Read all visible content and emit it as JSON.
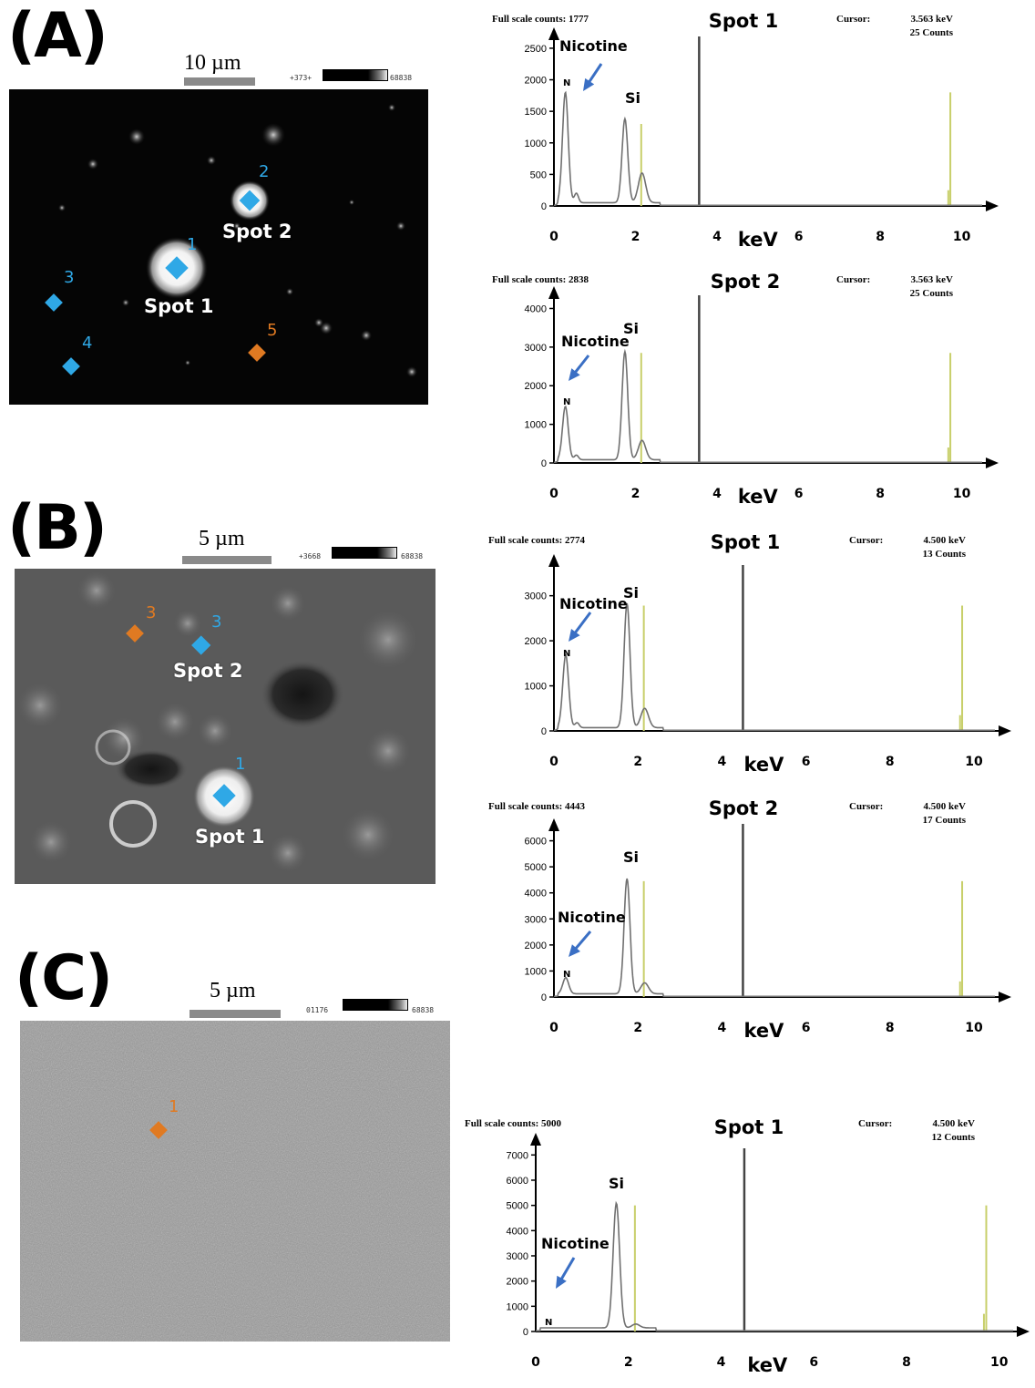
{
  "panels": {
    "a": {
      "label": "(A)",
      "scale": "10 µm",
      "range_left": "+373+",
      "range_right": "68838",
      "spot_labels": {
        "s1": "Spot 1",
        "s2": "Spot 2"
      },
      "numbers": {
        "n1": "1",
        "n2": "2",
        "n3": "3",
        "n4": "4",
        "n5": "5"
      }
    },
    "b": {
      "label": "(B)",
      "scale": "5 µm",
      "range_left": "+3668",
      "range_right": "68838",
      "spot_labels": {
        "s1": "Spot 1",
        "s2": "Spot 2"
      },
      "numbers": {
        "n1": "1",
        "n2": "3",
        "n3": "3"
      }
    },
    "c": {
      "label": "(C)",
      "scale": "5 µm",
      "range_left": "01176",
      "range_right": "68838",
      "numbers": {
        "n1": "1"
      }
    }
  },
  "colors": {
    "marker_blue": "#2fa8e6",
    "marker_orange": "#e07a22",
    "arrow_blue": "#3a6fc4",
    "peak_line": "#c8cf6a",
    "spectrum_line": "#707070"
  },
  "chart_data": [
    {
      "type": "line",
      "panel": "A",
      "title": "Spot 1",
      "full_scale": "Full scale counts: 1777",
      "cursor_label": "Cursor:",
      "cursor_value": "3.563 keV",
      "cursor_counts": "25 Counts",
      "xlabel": "keV",
      "xlim": [
        0,
        10.5
      ],
      "ylim": [
        0,
        2600
      ],
      "xticks": [
        0,
        2,
        4,
        6,
        8,
        10
      ],
      "yticks": [
        0,
        500,
        1000,
        1500,
        2000,
        2500
      ],
      "cursor_x": 3.56,
      "peaks": [
        {
          "x": 0.28,
          "y": 1750,
          "w": 0.07
        },
        {
          "x": 0.55,
          "y": 150,
          "w": 0.05
        },
        {
          "x": 1.74,
          "y": 1330,
          "w": 0.07
        },
        {
          "x": 2.16,
          "y": 470,
          "w": 0.09
        }
      ],
      "markers": [
        {
          "x": 2.14,
          "y": 1300
        },
        {
          "x": 9.72,
          "y": 1800
        },
        {
          "x": 9.67,
          "y": 250
        }
      ],
      "annotations": {
        "nicotine": "Nicotine",
        "n": "N",
        "si": "Si"
      }
    },
    {
      "type": "line",
      "panel": "A",
      "title": "Spot 2",
      "full_scale": "Full scale counts: 2838",
      "cursor_label": "Cursor:",
      "cursor_value": "3.563 keV",
      "cursor_counts": "25 Counts",
      "xlabel": "keV",
      "xlim": [
        0,
        10.5
      ],
      "ylim": [
        0,
        4200
      ],
      "xticks": [
        0,
        2,
        4,
        6,
        8,
        10
      ],
      "yticks": [
        0,
        1000,
        2000,
        3000,
        4000
      ],
      "cursor_x": 3.56,
      "peaks": [
        {
          "x": 0.28,
          "y": 1380,
          "w": 0.07
        },
        {
          "x": 0.55,
          "y": 120,
          "w": 0.05
        },
        {
          "x": 1.74,
          "y": 2800,
          "w": 0.07
        },
        {
          "x": 2.16,
          "y": 500,
          "w": 0.09
        }
      ],
      "markers": [
        {
          "x": 2.14,
          "y": 2850
        },
        {
          "x": 9.72,
          "y": 2850
        },
        {
          "x": 9.67,
          "y": 400
        }
      ],
      "annotations": {
        "nicotine": "Nicotine",
        "n": "N",
        "si": "Si"
      }
    },
    {
      "type": "line",
      "panel": "B",
      "title": "Spot 1",
      "full_scale": "Full scale counts: 2774",
      "cursor_label": "Cursor:",
      "cursor_value": "4.500 keV",
      "cursor_counts": "13 Counts",
      "xlabel": "keV",
      "xlim": [
        0,
        10.5
      ],
      "ylim": [
        0,
        3600
      ],
      "xticks": [
        0,
        2,
        4,
        6,
        8,
        10
      ],
      "yticks": [
        0,
        1000,
        2000,
        3000
      ],
      "cursor_x": 4.5,
      "peaks": [
        {
          "x": 0.28,
          "y": 1620,
          "w": 0.07
        },
        {
          "x": 0.55,
          "y": 110,
          "w": 0.05
        },
        {
          "x": 1.74,
          "y": 2760,
          "w": 0.07
        },
        {
          "x": 2.16,
          "y": 430,
          "w": 0.09
        }
      ],
      "markers": [
        {
          "x": 2.14,
          "y": 2780
        },
        {
          "x": 9.72,
          "y": 2780
        },
        {
          "x": 9.67,
          "y": 350
        }
      ],
      "annotations": {
        "nicotine": "Nicotine",
        "n": "N",
        "si": "Si"
      }
    },
    {
      "type": "line",
      "panel": "B",
      "title": "Spot 2",
      "full_scale": "Full scale counts: 4443",
      "cursor_label": "Cursor:",
      "cursor_value": "4.500 keV",
      "cursor_counts": "17 Counts",
      "xlabel": "keV",
      "xlim": [
        0,
        10.5
      ],
      "ylim": [
        0,
        6300
      ],
      "xticks": [
        0,
        2,
        4,
        6,
        8,
        10
      ],
      "yticks": [
        0,
        1000,
        2000,
        3000,
        4000,
        5000,
        6000
      ],
      "cursor_x": 4.5,
      "peaks": [
        {
          "x": 0.28,
          "y": 620,
          "w": 0.07
        },
        {
          "x": 1.74,
          "y": 4420,
          "w": 0.07
        },
        {
          "x": 2.16,
          "y": 420,
          "w": 0.09
        }
      ],
      "markers": [
        {
          "x": 2.14,
          "y": 4450
        },
        {
          "x": 9.72,
          "y": 4450
        },
        {
          "x": 9.67,
          "y": 600
        }
      ],
      "annotations": {
        "nicotine": "Nicotine",
        "n": "N",
        "si": "Si"
      }
    },
    {
      "type": "line",
      "panel": "C",
      "title": "Spot 1",
      "full_scale": "Full scale counts: 5000",
      "cursor_label": "Cursor:",
      "cursor_value": "4.500 keV",
      "cursor_counts": "12 Counts",
      "xlabel": "keV",
      "xlim": [
        0,
        10.3
      ],
      "ylim": [
        0,
        7300
      ],
      "xticks": [
        0,
        2,
        4,
        6,
        8,
        10
      ],
      "yticks": [
        0,
        1000,
        2000,
        3000,
        4000,
        5000,
        6000,
        7000
      ],
      "cursor_x": 4.5,
      "peaks": [
        {
          "x": 1.74,
          "y": 4950,
          "w": 0.07
        },
        {
          "x": 2.16,
          "y": 150,
          "w": 0.08
        }
      ],
      "markers": [
        {
          "x": 2.14,
          "y": 5000
        },
        {
          "x": 9.72,
          "y": 5000
        },
        {
          "x": 9.67,
          "y": 700
        }
      ],
      "annotations": {
        "nicotine": "Nicotine",
        "n": "N",
        "si": "Si"
      }
    }
  ]
}
